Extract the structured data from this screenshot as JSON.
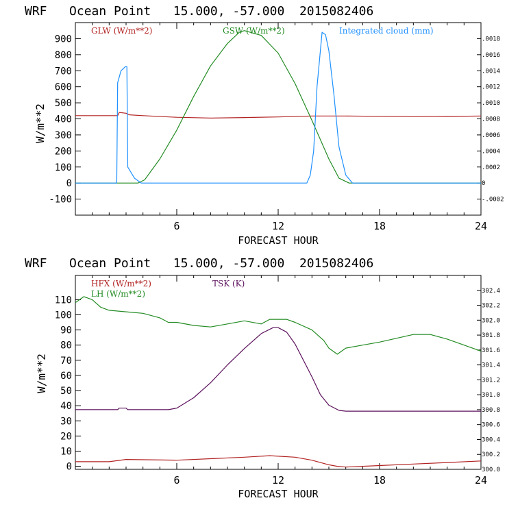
{
  "colors": {
    "red": "#b22222",
    "green": "#228b22",
    "blue": "#1e90ff",
    "purple": "#5b0f5b",
    "axis": "#000000"
  },
  "chart_data": [
    {
      "type": "line",
      "title": "WRF   Ocean Point   15.000, -57.000  2015082406",
      "xlabel": "FORECAST HOUR",
      "ylabel": "W/m**2",
      "xlim": [
        0,
        24
      ],
      "ylim": [
        -200,
        1000
      ],
      "x_ticks": [
        6,
        12,
        18,
        24
      ],
      "y_ticks": [
        -100,
        0,
        100,
        200,
        300,
        400,
        500,
        600,
        700,
        800,
        900
      ],
      "y2lim": [
        -0.0004,
        0.002
      ],
      "y2_ticks": [
        "-.0002",
        "0",
        ".0002",
        ".0004",
        ".0006",
        ".0008",
        ".0010",
        ".0012",
        ".0014",
        ".0016",
        ".0018"
      ],
      "y2_tick_values": [
        -0.0002,
        0,
        0.0002,
        0.0004,
        0.0006,
        0.0008,
        0.001,
        0.0012,
        0.0014,
        0.0016,
        0.0018
      ],
      "series": [
        {
          "name": "GLW (W/m**2)",
          "color": "#b22222",
          "axis": "left",
          "points": [
            [
              0,
              420
            ],
            [
              2.5,
              420
            ],
            [
              2.6,
              440
            ],
            [
              3,
              435
            ],
            [
              3.2,
              425
            ],
            [
              4,
              420
            ],
            [
              6,
              410
            ],
            [
              8,
              405
            ],
            [
              10,
              408
            ],
            [
              12,
              412
            ],
            [
              14,
              418
            ],
            [
              16,
              418
            ],
            [
              18,
              416
            ],
            [
              20,
              414
            ],
            [
              22,
              415
            ],
            [
              24,
              418
            ]
          ]
        },
        {
          "name": "GSW (W/m**2)",
          "color": "#228b22",
          "axis": "left",
          "points": [
            [
              0,
              0
            ],
            [
              3.7,
              0
            ],
            [
              4.1,
              20
            ],
            [
              5,
              150
            ],
            [
              6,
              330
            ],
            [
              7,
              540
            ],
            [
              8,
              730
            ],
            [
              9,
              870
            ],
            [
              9.7,
              940
            ],
            [
              10,
              950
            ],
            [
              11,
              920
            ],
            [
              12,
              810
            ],
            [
              13,
              620
            ],
            [
              14,
              390
            ],
            [
              15,
              150
            ],
            [
              15.6,
              30
            ],
            [
              16.2,
              0
            ],
            [
              24,
              0
            ]
          ]
        },
        {
          "name": "Integrated cloud (mm)",
          "color": "#1e90ff",
          "axis": "right",
          "points": [
            [
              0,
              0
            ],
            [
              2.45,
              0
            ],
            [
              2.5,
              0.00125
            ],
            [
              2.7,
              0.0014
            ],
            [
              2.95,
              0.00145
            ],
            [
              3.05,
              0.00145
            ],
            [
              3.1,
              0.0002
            ],
            [
              3.5,
              6e-05
            ],
            [
              3.9,
              0
            ],
            [
              13.7,
              0
            ],
            [
              13.9,
              0.0001
            ],
            [
              14.1,
              0.0004
            ],
            [
              14.3,
              0.0012
            ],
            [
              14.6,
              0.00188
            ],
            [
              14.8,
              0.00185
            ],
            [
              15.0,
              0.00165
            ],
            [
              15.3,
              0.0011
            ],
            [
              15.6,
              0.00045
            ],
            [
              16.0,
              0.0001
            ],
            [
              16.4,
              0
            ],
            [
              24,
              0
            ]
          ]
        }
      ]
    },
    {
      "type": "line",
      "title": "WRF   Ocean Point   15.000, -57.000  2015082406",
      "xlabel": "FORECAST HOUR",
      "ylabel": "W/m**2",
      "xlim": [
        0,
        24
      ],
      "ylim": [
        -2,
        126
      ],
      "x_ticks": [
        6,
        12,
        18,
        24
      ],
      "y_ticks": [
        0,
        10,
        20,
        30,
        40,
        50,
        60,
        70,
        80,
        90,
        100,
        110
      ],
      "y2lim": [
        300.0,
        302.6
      ],
      "y2_ticks": [
        "300.0",
        "300.2",
        "300.4",
        "300.6",
        "300.8",
        "301.0",
        "301.2",
        "301.4",
        "301.6",
        "301.8",
        "302.0",
        "302.2",
        "302.4"
      ],
      "y2_tick_values": [
        300.0,
        300.2,
        300.4,
        300.6,
        300.8,
        301.0,
        301.2,
        301.4,
        301.6,
        301.8,
        302.0,
        302.2,
        302.4
      ],
      "series": [
        {
          "name": "HFX (W/m**2)",
          "color": "#b22222",
          "axis": "left",
          "points": [
            [
              0,
              3
            ],
            [
              2,
              3
            ],
            [
              3,
              4.5
            ],
            [
              6,
              4
            ],
            [
              8,
              5
            ],
            [
              10,
              6
            ],
            [
              11.5,
              7
            ],
            [
              13,
              6
            ],
            [
              14,
              4
            ],
            [
              15,
              1
            ],
            [
              15.5,
              0
            ],
            [
              16,
              -0.5
            ],
            [
              17,
              0
            ],
            [
              18,
              0.5
            ],
            [
              20,
              1.5
            ],
            [
              22,
              2.5
            ],
            [
              24,
              3.5
            ]
          ]
        },
        {
          "name": "LH (W/m**2)",
          "color": "#228b22",
          "axis": "left",
          "points": [
            [
              0,
              108
            ],
            [
              0.5,
              112
            ],
            [
              1,
              110
            ],
            [
              1.5,
              105
            ],
            [
              2,
              103
            ],
            [
              3,
              102
            ],
            [
              4,
              101
            ],
            [
              5,
              98
            ],
            [
              5.5,
              95
            ],
            [
              6,
              95
            ],
            [
              7,
              93
            ],
            [
              8,
              92
            ],
            [
              9,
              94
            ],
            [
              10,
              96
            ],
            [
              11,
              94
            ],
            [
              11.5,
              97
            ],
            [
              12.5,
              97
            ],
            [
              13,
              95
            ],
            [
              14,
              90
            ],
            [
              14.7,
              83
            ],
            [
              15,
              78
            ],
            [
              15.5,
              74
            ],
            [
              16,
              78
            ],
            [
              17,
              80
            ],
            [
              18,
              82
            ],
            [
              20,
              87
            ],
            [
              21,
              87
            ],
            [
              22,
              84
            ],
            [
              23,
              80
            ],
            [
              24,
              76
            ]
          ]
        },
        {
          "name": "TSK (K)",
          "color": "#5b0f5b",
          "axis": "right",
          "points": [
            [
              0,
              300.8
            ],
            [
              2.5,
              300.8
            ],
            [
              2.6,
              300.82
            ],
            [
              3.0,
              300.82
            ],
            [
              3.1,
              300.8
            ],
            [
              5.5,
              300.8
            ],
            [
              6,
              300.82
            ],
            [
              7,
              300.96
            ],
            [
              8,
              301.16
            ],
            [
              9,
              301.4
            ],
            [
              10,
              301.62
            ],
            [
              11,
              301.82
            ],
            [
              11.7,
              301.9
            ],
            [
              12,
              301.9
            ],
            [
              12.5,
              301.84
            ],
            [
              13,
              301.68
            ],
            [
              14,
              301.24
            ],
            [
              14.5,
              301.0
            ],
            [
              15,
              300.86
            ],
            [
              15.6,
              300.79
            ],
            [
              16,
              300.78
            ],
            [
              24,
              300.78
            ]
          ]
        }
      ]
    }
  ]
}
